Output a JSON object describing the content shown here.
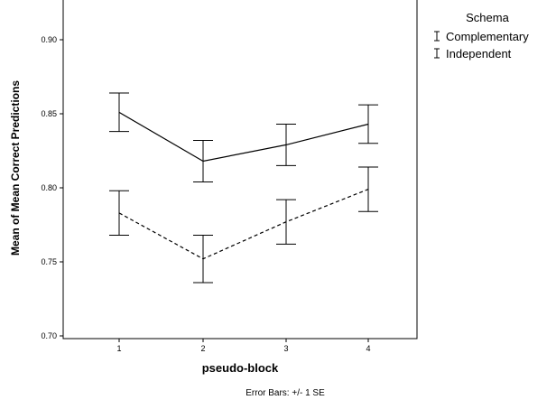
{
  "chart_data": {
    "type": "line",
    "xlabel": "pseudo-block",
    "ylabel": "Mean of Mean Correct Predictions",
    "x": [
      1,
      2,
      3,
      4
    ],
    "x_tick_labels": [
      "1",
      "2",
      "3",
      "4"
    ],
    "ylim": [
      0.7,
      0.92
    ],
    "yticks": [
      0.7,
      0.75,
      0.8,
      0.85,
      0.9
    ],
    "y_tick_labels": [
      "0.70",
      "0.75",
      "0.80",
      "0.85",
      "0.90"
    ],
    "grid": false,
    "legend": {
      "title": "Schema",
      "placement": "right"
    },
    "series": [
      {
        "name": "Complementary",
        "line_style": "solid",
        "color": "#000000",
        "values": [
          0.851,
          0.818,
          0.829,
          0.843
        ],
        "error": [
          0.013,
          0.014,
          0.014,
          0.013
        ]
      },
      {
        "name": "Independent",
        "line_style": "dashed",
        "color": "#000000",
        "values": [
          0.783,
          0.752,
          0.777,
          0.799
        ],
        "error": [
          0.015,
          0.016,
          0.015,
          0.015
        ]
      }
    ],
    "footnote": "Error Bars: +/- 1 SE"
  }
}
